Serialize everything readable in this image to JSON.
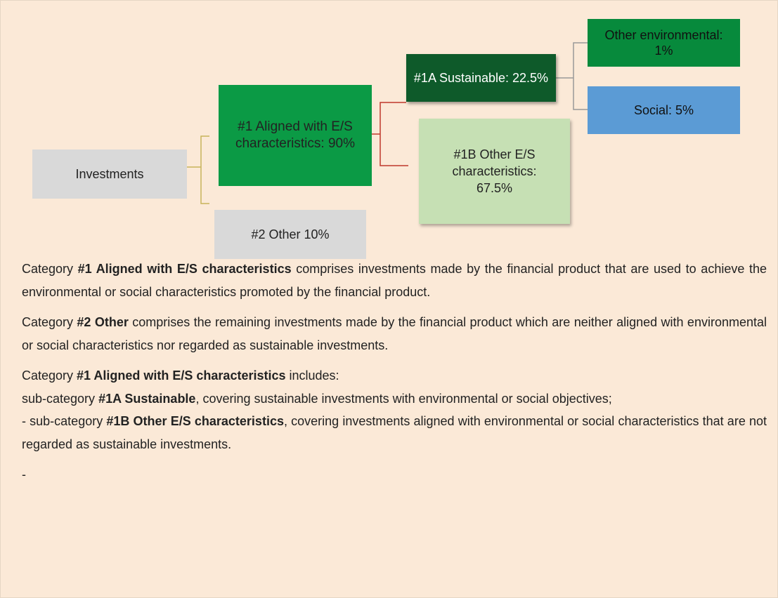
{
  "diagram": {
    "nodes": [
      {
        "label": "Investments"
      },
      {
        "label": "#1 Aligned with E/S characteristics: 90%"
      },
      {
        "label": "#2 Other 10%"
      },
      {
        "label": "#1A Sustainable: 22.5%"
      },
      {
        "label": "#1B Other E/S characteristics: 67.5%"
      },
      {
        "label": "Other environmental: 1%"
      },
      {
        "label": "Social: 5%"
      }
    ]
  },
  "paragraphs": [
    {
      "segments": [
        {
          "text": "Category "
        },
        {
          "text": "#1 Aligned with E/S characteristics",
          "bold": true
        },
        {
          "text": " comprises investments made by the financial product that are used to achieve the environmental or social characteristics promoted by the financial product."
        }
      ]
    },
    {
      "segments": [
        {
          "text": "Category "
        },
        {
          "text": "#2 Other",
          "bold": true
        },
        {
          "text": " comprises the remaining investments made by the financial product which are neither aligned with environmental or social characteristics nor regarded as sustainable investments."
        }
      ]
    },
    {
      "segments": [
        {
          "text": "Category "
        },
        {
          "text": "#1 Aligned with E/S characteristics",
          "bold": true
        },
        {
          "text": " includes:"
        }
      ]
    },
    {
      "segments": [
        {
          "text": " sub-category "
        },
        {
          "text": "#1A Sustainable",
          "bold": true
        },
        {
          "text": ", covering sustainable investments with environmental or social objectives;"
        }
      ]
    },
    {
      "segments": [
        {
          "text": "-"
        },
        {
          "text": " sub-category "
        },
        {
          "text": "#1B Other E/S characteristics",
          "bold": true
        },
        {
          "text": ", covering investments aligned with environmental or social characteristics that are not regarded as sustainable investments."
        }
      ]
    },
    {
      "segments": [
        {
          "text": "-"
        }
      ]
    }
  ]
}
